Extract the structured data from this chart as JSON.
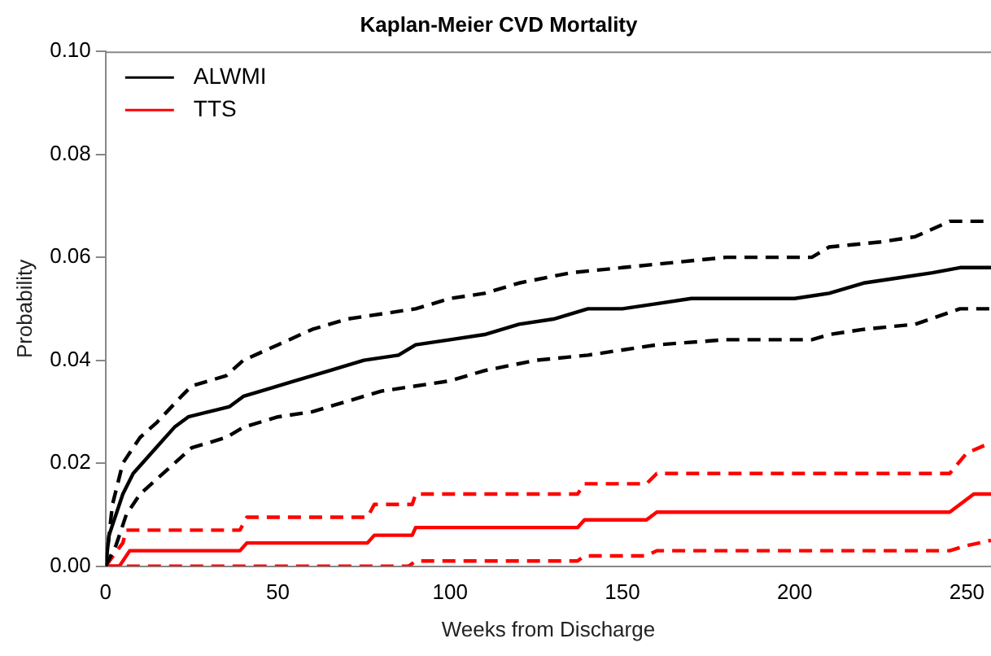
{
  "chart_data": {
    "type": "line",
    "title": "Kaplan-Meier CVD Mortality",
    "xlabel": "Weeks from Discharge",
    "ylabel": "Probability",
    "xlim": [
      0,
      257
    ],
    "xticks": [
      0,
      50,
      100,
      150,
      200,
      250
    ],
    "ylim": [
      0,
      0.1
    ],
    "yticks": [
      {
        "value": 0,
        "label": "0.00"
      },
      0.02,
      0.04,
      0.06,
      0.08,
      {
        "value": 0.1,
        "label": "0.10"
      }
    ],
    "grid": false,
    "legend": "top left",
    "marker": "none",
    "series": [
      {
        "name": "ALWMI",
        "color": "#000000",
        "line_style": "solid",
        "x": [
          0,
          1,
          3,
          5,
          8,
          12,
          16,
          20,
          24,
          30,
          36,
          40,
          45,
          55,
          65,
          75,
          85,
          90,
          100,
          110,
          120,
          130,
          140,
          150,
          160,
          170,
          180,
          200,
          210,
          220,
          230,
          240,
          248,
          257
        ],
        "values": [
          0,
          0.006,
          0.01,
          0.014,
          0.018,
          0.021,
          0.024,
          0.027,
          0.029,
          0.03,
          0.031,
          0.033,
          0.034,
          0.036,
          0.038,
          0.04,
          0.041,
          0.043,
          0.044,
          0.045,
          0.047,
          0.048,
          0.05,
          0.05,
          0.051,
          0.052,
          0.052,
          0.052,
          0.053,
          0.055,
          0.056,
          0.057,
          0.058,
          0.058
        ]
      },
      {
        "color": "#000000",
        "line_style": "dashed",
        "x": [
          0,
          2,
          5,
          10,
          15,
          22,
          25,
          35,
          40,
          50,
          60,
          70,
          80,
          90,
          100,
          110,
          120,
          135,
          150,
          165,
          180,
          205,
          210,
          225,
          235,
          245,
          257
        ],
        "values": [
          0,
          0.012,
          0.02,
          0.025,
          0.028,
          0.033,
          0.035,
          0.037,
          0.04,
          0.043,
          0.046,
          0.048,
          0.049,
          0.05,
          0.052,
          0.053,
          0.055,
          0.057,
          0.058,
          0.059,
          0.06,
          0.06,
          0.062,
          0.063,
          0.064,
          0.067,
          0.067
        ]
      },
      {
        "color": "#000000",
        "line_style": "dashed",
        "x": [
          0,
          3,
          6,
          10,
          15,
          20,
          25,
          35,
          40,
          50,
          60,
          70,
          80,
          90,
          100,
          110,
          125,
          140,
          150,
          160,
          180,
          205,
          210,
          220,
          235,
          248,
          257
        ],
        "values": [
          0,
          0.004,
          0.01,
          0.014,
          0.017,
          0.02,
          0.023,
          0.025,
          0.027,
          0.029,
          0.03,
          0.032,
          0.034,
          0.035,
          0.036,
          0.038,
          0.04,
          0.041,
          0.042,
          0.043,
          0.044,
          0.044,
          0.045,
          0.046,
          0.047,
          0.05,
          0.05
        ]
      },
      {
        "name": "TTS",
        "color": "#ff0000",
        "line_style": "solid",
        "x": [
          0,
          4,
          7,
          39,
          41,
          76,
          78,
          89,
          90,
          137,
          139,
          157,
          160,
          245,
          248,
          252,
          257
        ],
        "values": [
          0,
          0,
          0.003,
          0.003,
          0.0045,
          0.0045,
          0.006,
          0.006,
          0.0075,
          0.0075,
          0.009,
          0.009,
          0.0105,
          0.0105,
          0.012,
          0.014,
          0.014
        ]
      },
      {
        "color": "#ff0000",
        "line_style": "dashed",
        "x": [
          0,
          5,
          6,
          39,
          41,
          76,
          78,
          89,
          90,
          137,
          139,
          157,
          160,
          245,
          250,
          257
        ],
        "values": [
          0,
          0.0045,
          0.007,
          0.007,
          0.0095,
          0.0095,
          0.012,
          0.012,
          0.014,
          0.014,
          0.016,
          0.016,
          0.018,
          0.018,
          0.022,
          0.024
        ]
      },
      {
        "color": "#ff0000",
        "line_style": "dashed",
        "x": [
          0,
          88,
          90,
          137,
          139,
          157,
          160,
          245,
          250,
          257
        ],
        "values": [
          0,
          0,
          0.001,
          0.001,
          0.002,
          0.002,
          0.003,
          0.003,
          0.004,
          0.005
        ]
      }
    ]
  }
}
